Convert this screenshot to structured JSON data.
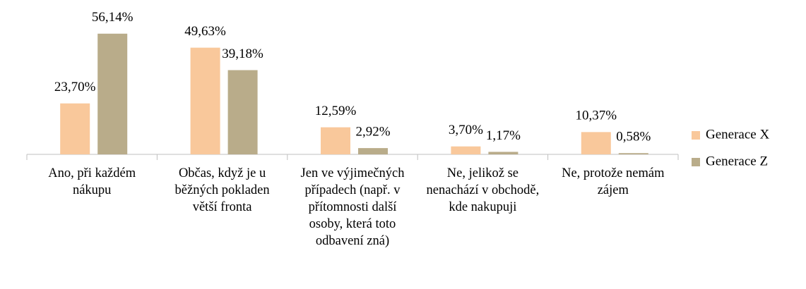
{
  "chart_data": {
    "type": "bar",
    "categories": [
      "Ano, při každém nákupu",
      "Občas, když je u běžných pokladen větší fronta",
      "Jen ve výjimečných případech (např. v přítomnosti další osoby, která toto odbavení zná)",
      "Ne, jelikož se nenachází v obchodě, kde nakupuji",
      "Ne, protože nemám zájem"
    ],
    "series": [
      {
        "name": "Generace X",
        "color": "#f9c89b",
        "values": [
          23.7,
          49.63,
          12.59,
          3.7,
          10.37
        ],
        "value_labels": [
          "23,70%",
          "49,63%",
          "12,59%",
          "3,70%",
          "10,37%"
        ]
      },
      {
        "name": "Generace Z",
        "color": "#b9ac8a",
        "values": [
          56.14,
          39.18,
          2.92,
          1.17,
          0.58
        ],
        "value_labels": [
          "56,14%",
          "39,18%",
          "2,92%",
          "1,17%",
          "0,58%"
        ]
      }
    ],
    "legend": "right"
  }
}
